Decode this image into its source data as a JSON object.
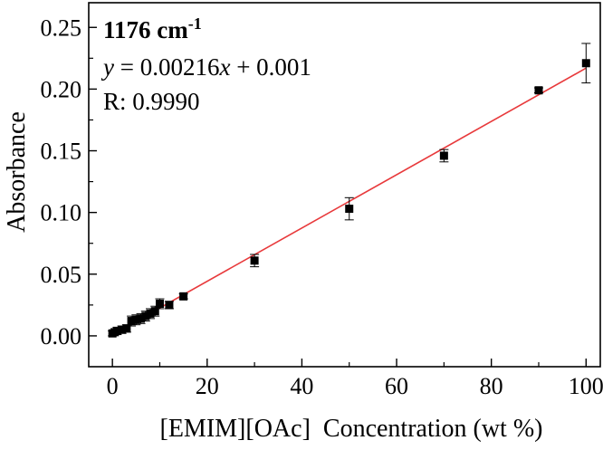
{
  "chart_data": {
    "type": "scatter",
    "xlabel": "[EMIM][OAc]  Concentration (wt %)",
    "ylabel": "Absorbance",
    "xlim": [
      -5,
      103
    ],
    "ylim": [
      -0.025,
      0.27
    ],
    "x_ticks": [
      "0",
      "20",
      "40",
      "60",
      "80",
      "100"
    ],
    "x_tick_values": [
      0,
      20,
      40,
      60,
      80,
      100
    ],
    "y_ticks": [
      "0.00",
      "0.05",
      "0.10",
      "0.15",
      "0.20",
      "0.25"
    ],
    "y_tick_values": [
      0.0,
      0.05,
      0.1,
      0.15,
      0.2,
      0.25
    ],
    "grid": false,
    "annotations": {
      "title_main": "1176 cm",
      "title_sup": "-1",
      "equation_y": "y",
      "equation_eq": " = 0.00216",
      "equation_x": "x",
      "equation_rest": " + 0.001",
      "r_value": "R: 0.9990"
    },
    "fit_line": {
      "slope": 0.00216,
      "intercept": 0.001,
      "x_range": [
        0,
        100
      ],
      "color": "#e8393b"
    },
    "series": [
      {
        "marker_color": "#000000",
        "points": [
          {
            "x": 0,
            "y": 0.002,
            "err": 0.002
          },
          {
            "x": 0.5,
            "y": 0.003,
            "err": 0.002
          },
          {
            "x": 1,
            "y": 0.004,
            "err": 0.003
          },
          {
            "x": 2,
            "y": 0.005,
            "err": 0.003
          },
          {
            "x": 3,
            "y": 0.006,
            "err": 0.003
          },
          {
            "x": 4,
            "y": 0.012,
            "err": 0.004
          },
          {
            "x": 5,
            "y": 0.013,
            "err": 0.004
          },
          {
            "x": 6,
            "y": 0.014,
            "err": 0.004
          },
          {
            "x": 7,
            "y": 0.016,
            "err": 0.004
          },
          {
            "x": 8,
            "y": 0.018,
            "err": 0.004
          },
          {
            "x": 9,
            "y": 0.02,
            "err": 0.004
          },
          {
            "x": 10,
            "y": 0.026,
            "err": 0.004
          },
          {
            "x": 12,
            "y": 0.025,
            "err": 0.003
          },
          {
            "x": 15,
            "y": 0.032,
            "err": 0.002
          },
          {
            "x": 30,
            "y": 0.061,
            "err": 0.005
          },
          {
            "x": 50,
            "y": 0.103,
            "err": 0.009
          },
          {
            "x": 70,
            "y": 0.146,
            "err": 0.005
          },
          {
            "x": 90,
            "y": 0.199,
            "err": 0.002
          },
          {
            "x": 100,
            "y": 0.221,
            "err": 0.016
          }
        ]
      }
    ]
  }
}
